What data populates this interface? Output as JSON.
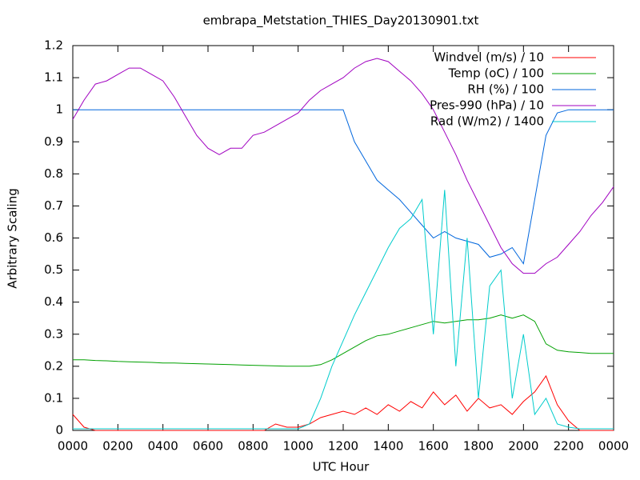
{
  "chart_data": {
    "type": "line",
    "title": "embrapa_Metstation_THIES_Day20130901.txt",
    "xlabel": "UTC Hour",
    "ylabel": "Arbitrary Scaling",
    "legend": "top-right",
    "x": [
      0,
      0.5,
      1,
      1.5,
      2,
      2.5,
      3,
      3.5,
      4,
      4.5,
      5,
      5.5,
      6,
      6.5,
      7,
      7.5,
      8,
      8.5,
      9,
      9.5,
      10,
      10.5,
      11,
      11.5,
      12,
      12.5,
      13,
      13.5,
      14,
      14.5,
      15,
      15.5,
      16,
      16.5,
      17,
      17.5,
      18,
      18.5,
      19,
      19.5,
      20,
      20.5,
      21,
      21.5,
      22,
      22.5,
      23,
      23.5,
      24
    ],
    "xlim": [
      0,
      24
    ],
    "xticks": [
      {
        "value": 0,
        "label": "0000"
      },
      {
        "value": 2,
        "label": "0200"
      },
      {
        "value": 4,
        "label": "0400"
      },
      {
        "value": 6,
        "label": "0600"
      },
      {
        "value": 8,
        "label": "0800"
      },
      {
        "value": 10,
        "label": "1000"
      },
      {
        "value": 12,
        "label": "1200"
      },
      {
        "value": 14,
        "label": "1400"
      },
      {
        "value": 16,
        "label": "1600"
      },
      {
        "value": 18,
        "label": "1800"
      },
      {
        "value": 20,
        "label": "2000"
      },
      {
        "value": 22,
        "label": "2200"
      },
      {
        "value": 24,
        "label": "0000"
      }
    ],
    "ylim": [
      0,
      1.2
    ],
    "yticks": [
      0,
      0.1,
      0.2,
      0.3,
      0.4,
      0.5,
      0.6,
      0.7,
      0.8,
      0.9,
      1,
      1.1,
      1.2
    ],
    "series": [
      {
        "name": "Windvel (m/s) / 10",
        "color": "#ff0000",
        "values": [
          0.05,
          0.01,
          0,
          0,
          0,
          0,
          0,
          0,
          0,
          0,
          0,
          0,
          0,
          0,
          0,
          0,
          0,
          0,
          0.02,
          0.01,
          0.01,
          0.02,
          0.04,
          0.05,
          0.06,
          0.05,
          0.07,
          0.05,
          0.08,
          0.06,
          0.09,
          0.07,
          0.12,
          0.08,
          0.11,
          0.06,
          0.1,
          0.07,
          0.08,
          0.05,
          0.09,
          0.12,
          0.17,
          0.08,
          0.03,
          0,
          0,
          0,
          0
        ]
      },
      {
        "name": "Temp (oC) / 100",
        "color": "#00a000",
        "values": [
          0.22,
          0.22,
          0.218,
          0.217,
          0.215,
          0.214,
          0.213,
          0.212,
          0.21,
          0.21,
          0.209,
          0.208,
          0.207,
          0.206,
          0.205,
          0.204,
          0.203,
          0.202,
          0.201,
          0.2,
          0.2,
          0.2,
          0.205,
          0.22,
          0.24,
          0.26,
          0.28,
          0.295,
          0.3,
          0.31,
          0.32,
          0.33,
          0.34,
          0.335,
          0.34,
          0.345,
          0.345,
          0.35,
          0.36,
          0.35,
          0.36,
          0.34,
          0.27,
          0.25,
          0.245,
          0.243,
          0.24,
          0.24,
          0.24
        ]
      },
      {
        "name": "RH (%) / 100",
        "color": "#0066dd",
        "values": [
          1,
          1,
          1,
          1,
          1,
          1,
          1,
          1,
          1,
          1,
          1,
          1,
          1,
          1,
          1,
          1,
          1,
          1,
          1,
          1,
          1,
          1,
          1,
          1,
          1,
          0.9,
          0.84,
          0.78,
          0.75,
          0.72,
          0.68,
          0.64,
          0.6,
          0.62,
          0.6,
          0.59,
          0.58,
          0.54,
          0.55,
          0.57,
          0.52,
          0.72,
          0.92,
          0.99,
          1,
          1,
          1,
          1,
          1
        ]
      },
      {
        "name": "Pres-990 (hPa) / 10",
        "color": "#a000c0",
        "values": [
          0.97,
          1.03,
          1.08,
          1.09,
          1.11,
          1.13,
          1.13,
          1.11,
          1.09,
          1.04,
          0.98,
          0.92,
          0.88,
          0.86,
          0.88,
          0.88,
          0.92,
          0.93,
          0.95,
          0.97,
          0.99,
          1.03,
          1.06,
          1.08,
          1.1,
          1.13,
          1.15,
          1.16,
          1.15,
          1.12,
          1.09,
          1.05,
          1,
          0.93,
          0.86,
          0.78,
          0.71,
          0.64,
          0.57,
          0.52,
          0.49,
          0.49,
          0.52,
          0.54,
          0.58,
          0.62,
          0.67,
          0.71,
          0.76
        ]
      },
      {
        "name": "Rad (W/m2) / 1400",
        "color": "#00cccc",
        "values": [
          0.005,
          0.005,
          0.005,
          0.005,
          0.005,
          0.005,
          0.005,
          0.005,
          0.005,
          0.005,
          0.005,
          0.005,
          0.005,
          0.005,
          0.005,
          0.005,
          0.005,
          0.005,
          0.005,
          0.005,
          0.005,
          0.02,
          0.1,
          0.2,
          0.28,
          0.36,
          0.43,
          0.5,
          0.57,
          0.63,
          0.66,
          0.72,
          0.3,
          0.75,
          0.2,
          0.6,
          0.1,
          0.45,
          0.5,
          0.1,
          0.3,
          0.05,
          0.1,
          0.02,
          0.01,
          0.005,
          0.005,
          0.005,
          0.005
        ]
      }
    ]
  }
}
